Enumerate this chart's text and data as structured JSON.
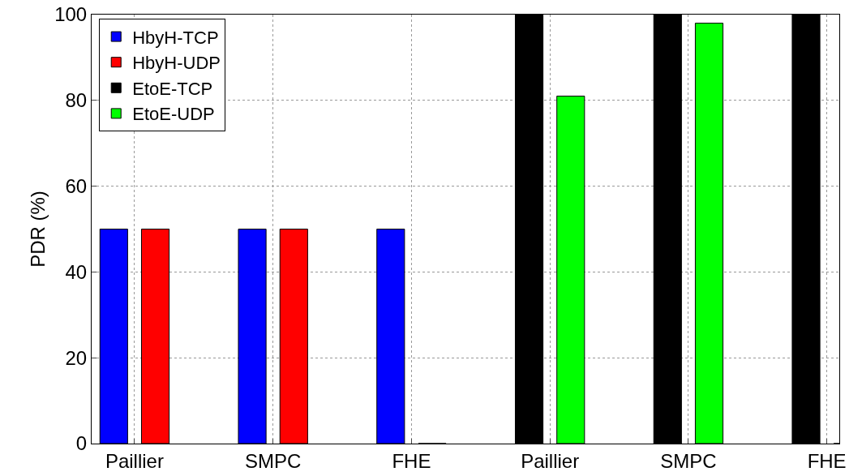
{
  "chart_data": {
    "type": "bar",
    "ylabel": "PDR (%)",
    "categories": [
      "Paillier",
      "SMPC",
      "FHE",
      "Paillier",
      "SMPC",
      "FHE"
    ],
    "series": [
      {
        "name": "HbyH-TCP",
        "color": "#0000ff",
        "values": [
          50,
          50,
          50,
          null,
          null,
          null
        ]
      },
      {
        "name": "HbyH-UDP",
        "color": "#ff0000",
        "values": [
          50,
          50,
          0,
          null,
          null,
          null
        ]
      },
      {
        "name": "EtoE-TCP",
        "color": "#000000",
        "values": [
          null,
          null,
          null,
          100,
          100,
          100
        ]
      },
      {
        "name": "EtoE-UDP",
        "color": "#00ff00",
        "values": [
          null,
          null,
          null,
          81,
          98,
          0
        ]
      }
    ],
    "ylim": [
      0,
      100
    ],
    "yticks": [
      0,
      20,
      40,
      60,
      80,
      100
    ],
    "grid": true,
    "legend": "top left"
  }
}
